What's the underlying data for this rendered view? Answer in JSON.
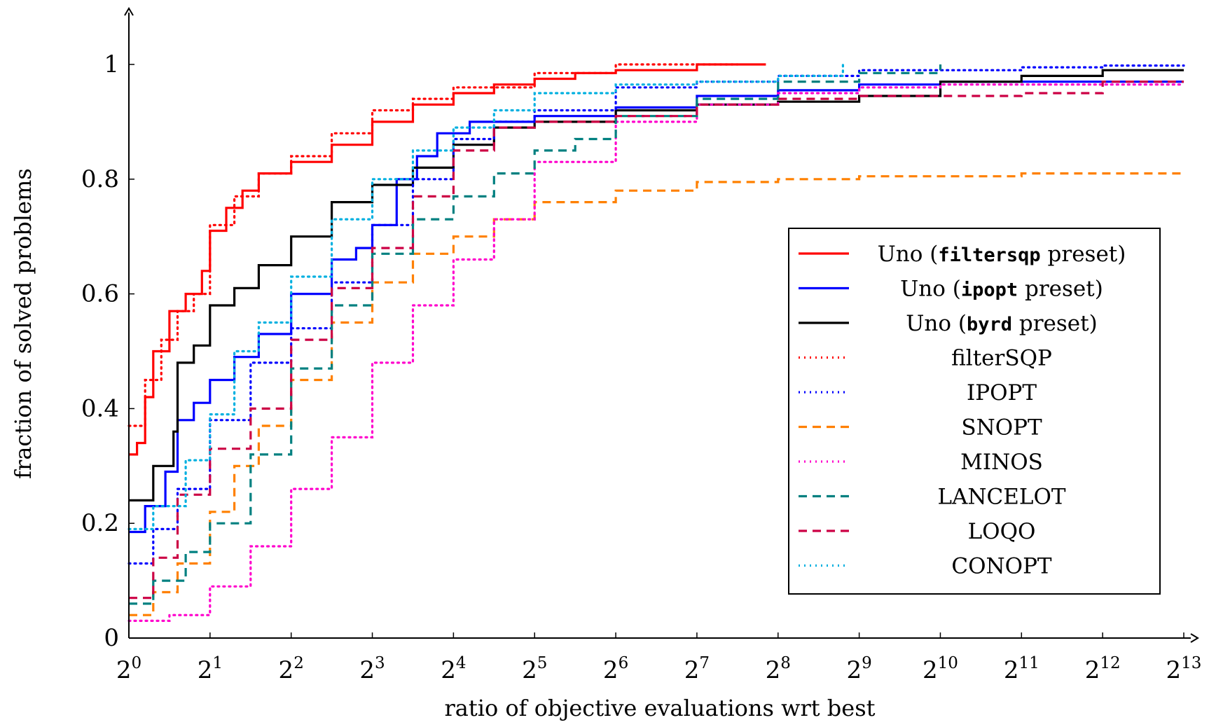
{
  "chart_data": {
    "type": "line",
    "xlabel": "ratio of objective evaluations wrt best",
    "ylabel": "fraction of solved problems",
    "x_scale": "log2",
    "xlim": [
      0,
      13
    ],
    "ylim": [
      0,
      1
    ],
    "x_ticks": [
      {
        "base": "2",
        "exp": "0"
      },
      {
        "base": "2",
        "exp": "1"
      },
      {
        "base": "2",
        "exp": "2"
      },
      {
        "base": "2",
        "exp": "3"
      },
      {
        "base": "2",
        "exp": "4"
      },
      {
        "base": "2",
        "exp": "5"
      },
      {
        "base": "2",
        "exp": "6"
      },
      {
        "base": "2",
        "exp": "7"
      },
      {
        "base": "2",
        "exp": "8"
      },
      {
        "base": "2",
        "exp": "9"
      },
      {
        "base": "2",
        "exp": "10"
      },
      {
        "base": "2",
        "exp": "11"
      },
      {
        "base": "2",
        "exp": "12"
      },
      {
        "base": "2",
        "exp": "13"
      }
    ],
    "y_ticks": [
      "0",
      "0.2",
      "0.4",
      "0.6",
      "0.8",
      "1"
    ],
    "y_tick_values": [
      0,
      0.2,
      0.4,
      0.6,
      0.8,
      1
    ],
    "legend_position": "right",
    "series": [
      {
        "pre": "Uno (",
        "code": "filtersqp",
        "post": " preset)",
        "color": "#ff0000",
        "style": "solid",
        "points": [
          [
            0,
            0.32
          ],
          [
            0.1,
            0.34
          ],
          [
            0.2,
            0.42
          ],
          [
            0.3,
            0.5
          ],
          [
            0.5,
            0.57
          ],
          [
            0.7,
            0.6
          ],
          [
            0.9,
            0.64
          ],
          [
            1.0,
            0.71
          ],
          [
            1.2,
            0.75
          ],
          [
            1.4,
            0.78
          ],
          [
            1.6,
            0.81
          ],
          [
            2,
            0.83
          ],
          [
            2.5,
            0.86
          ],
          [
            3,
            0.9
          ],
          [
            3.5,
            0.93
          ],
          [
            4,
            0.95
          ],
          [
            4.5,
            0.965
          ],
          [
            5,
            0.975
          ],
          [
            5.5,
            0.985
          ],
          [
            6,
            0.99
          ],
          [
            7,
            1.0
          ],
          [
            7.85,
            1.0
          ]
        ]
      },
      {
        "pre": "Uno (",
        "code": "ipopt",
        "post": " preset)",
        "color": "#0000ff",
        "style": "solid",
        "points": [
          [
            0,
            0.185
          ],
          [
            0.2,
            0.23
          ],
          [
            0.45,
            0.29
          ],
          [
            0.6,
            0.38
          ],
          [
            0.8,
            0.41
          ],
          [
            1,
            0.45
          ],
          [
            1.3,
            0.49
          ],
          [
            1.6,
            0.53
          ],
          [
            2,
            0.6
          ],
          [
            2.5,
            0.66
          ],
          [
            2.8,
            0.68
          ],
          [
            3,
            0.72
          ],
          [
            3.3,
            0.8
          ],
          [
            3.55,
            0.84
          ],
          [
            3.8,
            0.88
          ],
          [
            4.2,
            0.9
          ],
          [
            5,
            0.91
          ],
          [
            6,
            0.925
          ],
          [
            7,
            0.945
          ],
          [
            8,
            0.955
          ],
          [
            9,
            0.965
          ],
          [
            10,
            0.97
          ],
          [
            13,
            0.97
          ]
        ]
      },
      {
        "pre": "Uno (",
        "code": "byrd",
        "post": " preset)",
        "color": "#000000",
        "style": "solid",
        "points": [
          [
            0,
            0.24
          ],
          [
            0.3,
            0.3
          ],
          [
            0.55,
            0.36
          ],
          [
            0.6,
            0.48
          ],
          [
            0.8,
            0.51
          ],
          [
            1,
            0.58
          ],
          [
            1.3,
            0.61
          ],
          [
            1.6,
            0.65
          ],
          [
            2,
            0.7
          ],
          [
            2.5,
            0.76
          ],
          [
            3,
            0.79
          ],
          [
            3.5,
            0.82
          ],
          [
            4,
            0.86
          ],
          [
            4.5,
            0.89
          ],
          [
            5,
            0.9
          ],
          [
            6,
            0.92
          ],
          [
            7,
            0.93
          ],
          [
            8,
            0.935
          ],
          [
            9,
            0.945
          ],
          [
            10,
            0.97
          ],
          [
            11,
            0.98
          ],
          [
            12,
            0.99
          ],
          [
            13,
            0.99
          ]
        ]
      },
      {
        "pre": "filterSQP",
        "code": "",
        "post": "",
        "color": "#ff0000",
        "style": "dotted",
        "points": [
          [
            0,
            0.37
          ],
          [
            0.2,
            0.45
          ],
          [
            0.4,
            0.52
          ],
          [
            0.6,
            0.57
          ],
          [
            0.8,
            0.6
          ],
          [
            1,
            0.72
          ],
          [
            1.3,
            0.77
          ],
          [
            1.6,
            0.81
          ],
          [
            2,
            0.84
          ],
          [
            2.5,
            0.88
          ],
          [
            3,
            0.92
          ],
          [
            3.5,
            0.94
          ],
          [
            4,
            0.96
          ],
          [
            5,
            0.985
          ],
          [
            6,
            1.0
          ],
          [
            7.5,
            1.0
          ]
        ]
      },
      {
        "pre": "IPOPT",
        "code": "",
        "post": "",
        "color": "#0000ff",
        "style": "dotted",
        "points": [
          [
            0,
            0.13
          ],
          [
            0.3,
            0.19
          ],
          [
            0.6,
            0.26
          ],
          [
            1,
            0.38
          ],
          [
            1.5,
            0.48
          ],
          [
            2,
            0.54
          ],
          [
            2.5,
            0.62
          ],
          [
            3,
            0.72
          ],
          [
            3.5,
            0.8
          ],
          [
            4,
            0.87
          ],
          [
            4.5,
            0.9
          ],
          [
            5,
            0.92
          ],
          [
            6,
            0.96
          ],
          [
            7,
            0.97
          ],
          [
            8,
            0.98
          ],
          [
            9,
            0.99
          ],
          [
            10,
            0.99
          ],
          [
            11,
            0.995
          ],
          [
            12,
            0.998
          ],
          [
            13,
            0.998
          ]
        ]
      },
      {
        "pre": "SNOPT",
        "code": "",
        "post": "",
        "color": "#ff8000",
        "style": "dashed",
        "points": [
          [
            0,
            0.04
          ],
          [
            0.3,
            0.08
          ],
          [
            0.6,
            0.13
          ],
          [
            1,
            0.22
          ],
          [
            1.3,
            0.3
          ],
          [
            1.6,
            0.37
          ],
          [
            2,
            0.45
          ],
          [
            2.5,
            0.55
          ],
          [
            3,
            0.62
          ],
          [
            3.5,
            0.67
          ],
          [
            4,
            0.7
          ],
          [
            4.5,
            0.73
          ],
          [
            5,
            0.76
          ],
          [
            6,
            0.78
          ],
          [
            7,
            0.795
          ],
          [
            8,
            0.8
          ],
          [
            9,
            0.805
          ],
          [
            10,
            0.805
          ],
          [
            11,
            0.81
          ],
          [
            12,
            0.81
          ],
          [
            13,
            0.81
          ]
        ]
      },
      {
        "pre": "MINOS",
        "code": "",
        "post": "",
        "color": "#ff00cc",
        "style": "dotted",
        "points": [
          [
            0,
            0.03
          ],
          [
            0.5,
            0.04
          ],
          [
            1,
            0.09
          ],
          [
            1.5,
            0.16
          ],
          [
            2,
            0.26
          ],
          [
            2.5,
            0.35
          ],
          [
            3,
            0.48
          ],
          [
            3.5,
            0.58
          ],
          [
            4,
            0.66
          ],
          [
            4.5,
            0.73
          ],
          [
            5,
            0.83
          ],
          [
            6,
            0.9
          ],
          [
            7,
            0.93
          ],
          [
            8,
            0.95
          ],
          [
            9,
            0.96
          ],
          [
            10,
            0.965
          ],
          [
            13,
            0.965
          ]
        ]
      },
      {
        "pre": "LANCELOT",
        "code": "",
        "post": "",
        "color": "#008080",
        "style": "dashed",
        "points": [
          [
            0,
            0.06
          ],
          [
            0.3,
            0.1
          ],
          [
            0.7,
            0.15
          ],
          [
            1,
            0.2
          ],
          [
            1.5,
            0.32
          ],
          [
            2,
            0.47
          ],
          [
            2.5,
            0.58
          ],
          [
            3,
            0.67
          ],
          [
            3.5,
            0.73
          ],
          [
            4,
            0.77
          ],
          [
            4.5,
            0.81
          ],
          [
            5,
            0.85
          ],
          [
            5.5,
            0.87
          ],
          [
            6,
            0.91
          ],
          [
            7,
            0.94
          ],
          [
            8,
            0.97
          ],
          [
            9,
            0.985
          ],
          [
            10,
            1.0
          ]
        ]
      },
      {
        "pre": "LOQO",
        "code": "",
        "post": "",
        "color": "#cc0044",
        "style": "dashed",
        "points": [
          [
            0,
            0.07
          ],
          [
            0.3,
            0.14
          ],
          [
            0.6,
            0.25
          ],
          [
            1,
            0.33
          ],
          [
            1.5,
            0.4
          ],
          [
            2,
            0.52
          ],
          [
            2.5,
            0.61
          ],
          [
            3,
            0.68
          ],
          [
            3.5,
            0.77
          ],
          [
            4,
            0.85
          ],
          [
            4.5,
            0.89
          ],
          [
            5,
            0.9
          ],
          [
            6,
            0.91
          ],
          [
            7,
            0.93
          ],
          [
            8,
            0.94
          ],
          [
            9,
            0.945
          ],
          [
            10,
            0.945
          ],
          [
            11,
            0.95
          ],
          [
            12,
            0.97
          ],
          [
            13,
            0.97
          ]
        ]
      },
      {
        "pre": "CONOPT",
        "code": "",
        "post": "",
        "color": "#00b0e0",
        "style": "dotted",
        "points": [
          [
            0,
            0.19
          ],
          [
            0.3,
            0.23
          ],
          [
            0.7,
            0.31
          ],
          [
            1,
            0.39
          ],
          [
            1.3,
            0.5
          ],
          [
            1.6,
            0.55
          ],
          [
            2,
            0.63
          ],
          [
            2.5,
            0.73
          ],
          [
            3,
            0.8
          ],
          [
            3.5,
            0.85
          ],
          [
            4,
            0.89
          ],
          [
            4.5,
            0.92
          ],
          [
            5,
            0.95
          ],
          [
            6,
            0.965
          ],
          [
            7,
            0.97
          ],
          [
            8,
            0.98
          ],
          [
            8.8,
            1.0
          ]
        ]
      }
    ]
  }
}
